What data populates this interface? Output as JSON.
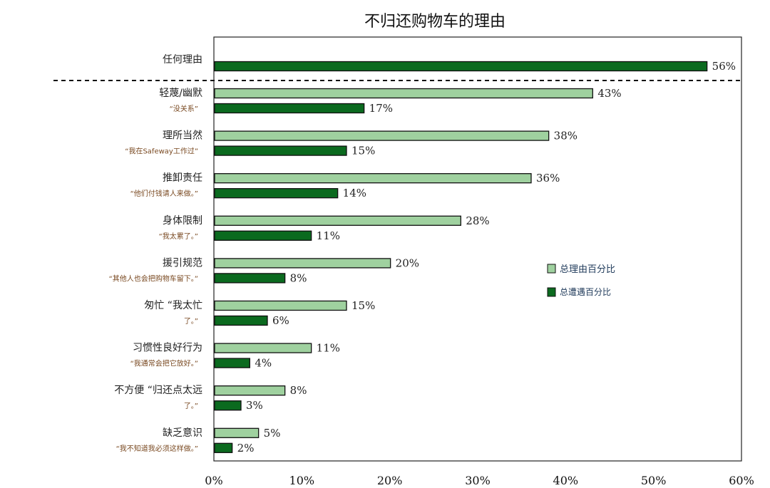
{
  "chart_data": {
    "type": "bar",
    "title": "不归还购物车的理由",
    "xlim": [
      0,
      60
    ],
    "x_ticks": [
      "0%",
      "10%",
      "20%",
      "30%",
      "40%",
      "50%",
      "60%"
    ],
    "categories": [
      {
        "label": "任何理由",
        "sub": ""
      },
      {
        "label": "轻蔑/幽默",
        "sub": "“没关系”"
      },
      {
        "label": "理所当然",
        "sub": "“我在Safeway工作过”"
      },
      {
        "label": "推卸责任",
        "sub": "“他们付钱请人来做。”"
      },
      {
        "label": "身体限制",
        "sub": "“我太累了。”"
      },
      {
        "label": "援引规范",
        "sub": "“其他人也会把购物车留下。”"
      },
      {
        "label": "匆忙 “我太忙",
        "sub": "了。”"
      },
      {
        "label": "习惯性良好行为",
        "sub": "“我通常会把它放好。”"
      },
      {
        "label": "不方便 “归还点太远",
        "sub": "了。”"
      },
      {
        "label": "缺乏意识",
        "sub": "“我不知道我必须这样做。”"
      }
    ],
    "series": [
      {
        "name": "总理由百分比",
        "color": "#9fd19f",
        "values": [
          null,
          43,
          38,
          36,
          28,
          20,
          15,
          11,
          8,
          5
        ],
        "labels": [
          "",
          "43%",
          "38%",
          "36%",
          "28%",
          "20%",
          "15%",
          "11%",
          "8%",
          "5%"
        ]
      },
      {
        "name": "总遭遇百分比",
        "color": "#0b6a1f",
        "values": [
          56,
          17,
          15,
          14,
          11,
          8,
          6,
          4,
          3,
          2
        ],
        "labels": [
          "56%",
          "17%",
          "15%",
          "14%",
          "11%",
          "8%",
          "6%",
          "4%",
          "3%",
          "2%"
        ]
      }
    ],
    "legend_position": "right-middle",
    "separator_after_first": true,
    "grid": false
  }
}
